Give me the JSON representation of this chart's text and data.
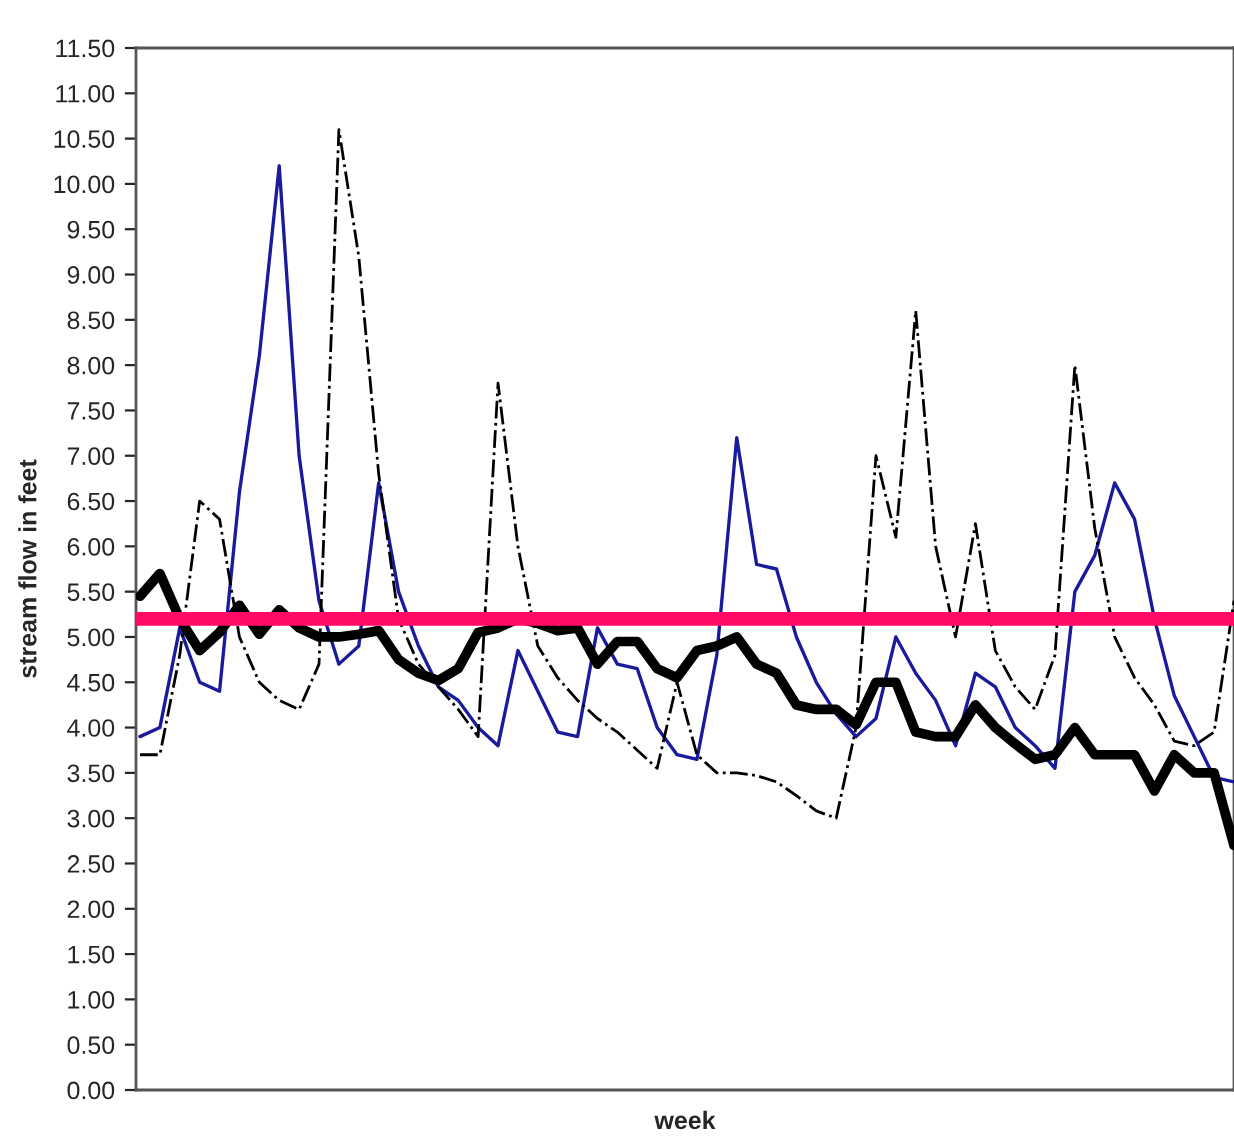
{
  "chart_data": {
    "type": "line",
    "xlabel": "week",
    "ylabel": "stream flow in feet",
    "ylim": [
      0,
      11.5
    ],
    "categories": [
      null,
      null,
      null,
      null,
      null,
      null,
      null,
      null,
      null,
      null,
      null,
      null,
      null,
      null,
      null,
      null,
      null,
      null,
      null,
      null,
      null,
      null,
      null,
      null,
      null,
      null,
      null,
      null,
      null,
      null,
      null,
      null,
      null,
      null,
      null,
      null,
      null,
      null,
      null,
      null,
      null,
      null,
      null,
      null,
      null,
      null,
      null,
      null,
      null,
      null,
      null,
      null,
      null,
      null,
      null,
      null
    ],
    "yticks": [
      {
        "value": 0,
        "label": "0.00"
      },
      {
        "value": 0.5,
        "label": "0.50"
      },
      {
        "value": 1,
        "label": "1.00"
      },
      {
        "value": 1.5,
        "label": "1.50"
      },
      {
        "value": 2,
        "label": "2.00"
      },
      {
        "value": 2.5,
        "label": "2.50"
      },
      {
        "value": 3,
        "label": "3.00"
      },
      {
        "value": 3.5,
        "label": "3.50"
      },
      {
        "value": 4,
        "label": "4.00"
      },
      {
        "value": 4.5,
        "label": "4.50"
      },
      {
        "value": 5,
        "label": "5.00"
      },
      {
        "value": 5.5,
        "label": "5.50"
      },
      {
        "value": 6,
        "label": "6.00"
      },
      {
        "value": 6.5,
        "label": "6.50"
      },
      {
        "value": 7,
        "label": "7.00"
      },
      {
        "value": 7.5,
        "label": "7.50"
      },
      {
        "value": 8,
        "label": "8.00"
      },
      {
        "value": 8.5,
        "label": "8.50"
      },
      {
        "value": 9,
        "label": "9.00"
      },
      {
        "value": 9.5,
        "label": "9.50"
      },
      {
        "value": 10,
        "label": "10.00"
      },
      {
        "value": 10.5,
        "label": "10.50"
      },
      {
        "value": 11,
        "label": "11.00"
      },
      {
        "value": 11.5,
        "label": "11.50"
      }
    ],
    "grid": false,
    "legend": false,
    "marker": "none",
    "series": [
      {
        "color": "#1a1a9c",
        "line_style": "solid",
        "values": [
          3.9,
          4.0,
          5.1,
          4.5,
          4.4,
          6.6,
          8.1,
          10.2,
          7.0,
          5.4,
          4.7,
          4.9,
          6.7,
          5.5,
          4.9,
          4.45,
          4.3,
          4.0,
          3.8,
          4.85,
          4.4,
          3.95,
          3.9,
          5.1,
          4.7,
          4.65,
          4.0,
          3.7,
          3.65,
          4.8,
          7.2,
          5.8,
          5.75,
          5.0,
          4.5,
          4.15,
          3.9,
          4.1,
          5.0,
          4.6,
          4.3,
          3.8,
          4.6,
          4.45,
          4.0,
          3.8,
          3.55,
          5.5,
          5.9,
          6.7,
          6.3,
          5.2,
          4.35,
          3.9,
          3.45,
          3.4
        ]
      },
      {
        "color": "#000000",
        "line_style": "dashdot",
        "values": [
          3.7,
          3.7,
          4.8,
          6.5,
          6.3,
          5.0,
          4.5,
          4.3,
          4.2,
          4.7,
          10.6,
          9.2,
          6.8,
          5.2,
          4.7,
          4.45,
          4.2,
          3.9,
          7.8,
          6.0,
          4.9,
          4.55,
          4.3,
          4.1,
          3.95,
          3.75,
          3.55,
          4.5,
          3.7,
          3.5,
          3.5,
          3.47,
          3.4,
          3.25,
          3.08,
          3.0,
          4.0,
          7.0,
          6.1,
          8.6,
          6.0,
          5.0,
          6.25,
          4.85,
          4.45,
          4.2,
          4.8,
          8.0,
          6.2,
          5.0,
          4.55,
          4.25,
          3.85,
          3.8,
          3.95,
          5.4
        ]
      },
      {
        "color": "#000000",
        "line_style": "solid",
        "values": [
          5.45,
          5.7,
          5.2,
          4.85,
          5.05,
          5.35,
          5.03,
          5.3,
          5.1,
          5.0,
          5.0,
          5.03,
          5.07,
          4.75,
          4.6,
          4.52,
          4.65,
          5.05,
          5.1,
          5.2,
          5.15,
          5.07,
          5.1,
          4.7,
          4.95,
          4.95,
          4.65,
          4.55,
          4.85,
          4.9,
          5.0,
          4.7,
          4.6,
          4.25,
          4.2,
          4.2,
          4.03,
          4.5,
          4.5,
          3.95,
          3.9,
          3.9,
          4.25,
          4.0,
          3.82,
          3.65,
          3.7,
          4.0,
          3.7,
          3.7,
          3.7,
          3.3,
          3.7,
          3.5,
          3.5,
          2.7
        ]
      }
    ],
    "ref_lines": [
      {
        "axis": "y",
        "value": 5.2,
        "color": "#ff0a64"
      }
    ]
  }
}
